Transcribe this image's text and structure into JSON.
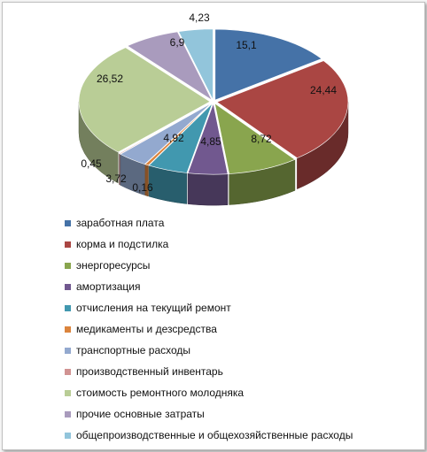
{
  "chart_data": {
    "type": "pie",
    "title": "",
    "style": "3d-exploded",
    "legend_position": "bottom",
    "categories": [
      "заработная плата",
      "корма и подстилка",
      "энергоресурсы",
      "амортизация",
      "отчисления на текущий ремонт",
      "медикаменты и дезсредства",
      "транспортные расходы",
      "производственный инвентарь",
      "стоимость ремонтного молодняка",
      "прочие основные затраты",
      "общепроизводственные и общехозяйственные расходы"
    ],
    "values": [
      15.1,
      24.44,
      8.72,
      4.85,
      4.92,
      0.45,
      3.72,
      0.16,
      26.52,
      6.9,
      4.23
    ],
    "value_labels": [
      "15,1",
      "24,44",
      "8,72",
      "4,85",
      "4,92",
      "0,45",
      "3,72",
      "0,16",
      "26,52",
      "6,9",
      "4,23"
    ],
    "colors": [
      "#4572a7",
      "#aa4643",
      "#89a54e",
      "#71588f",
      "#4198af",
      "#db843d",
      "#93a9cf",
      "#d19392",
      "#b9cd96",
      "#a99bbd",
      "#92c5db"
    ]
  }
}
